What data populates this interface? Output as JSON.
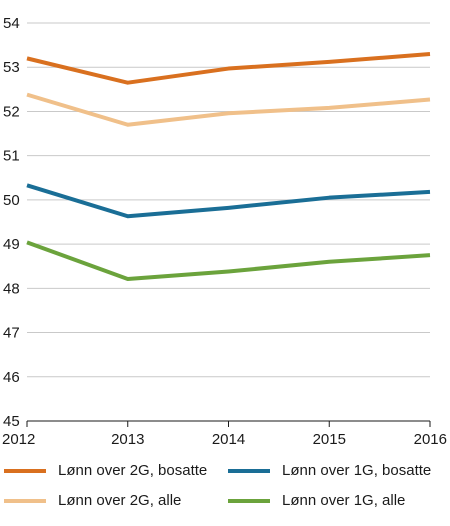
{
  "chart_data": {
    "type": "line",
    "x": [
      "2012",
      "2013",
      "2014",
      "2015",
      "2016"
    ],
    "ylim": [
      45,
      54
    ],
    "yticks": [
      45,
      46,
      47,
      48,
      49,
      50,
      51,
      52,
      53,
      54
    ],
    "grid": true,
    "legend_position": "bottom",
    "series": [
      {
        "name": "Lønn over 2G, bosatte",
        "color": "#d9701f",
        "values": [
          53.2,
          52.65,
          52.97,
          53.12,
          53.3
        ]
      },
      {
        "name": "Lønn over 2G, alle",
        "color": "#f0c08a",
        "values": [
          52.38,
          51.7,
          51.96,
          52.08,
          52.27
        ]
      },
      {
        "name": "Lønn over 1G, bosatte",
        "color": "#1a6e96",
        "values": [
          50.33,
          49.63,
          49.82,
          50.05,
          50.18
        ]
      },
      {
        "name": "Lønn over 1G, alle",
        "color": "#6ba33c",
        "values": [
          49.04,
          48.21,
          48.38,
          48.6,
          48.75
        ]
      }
    ]
  }
}
